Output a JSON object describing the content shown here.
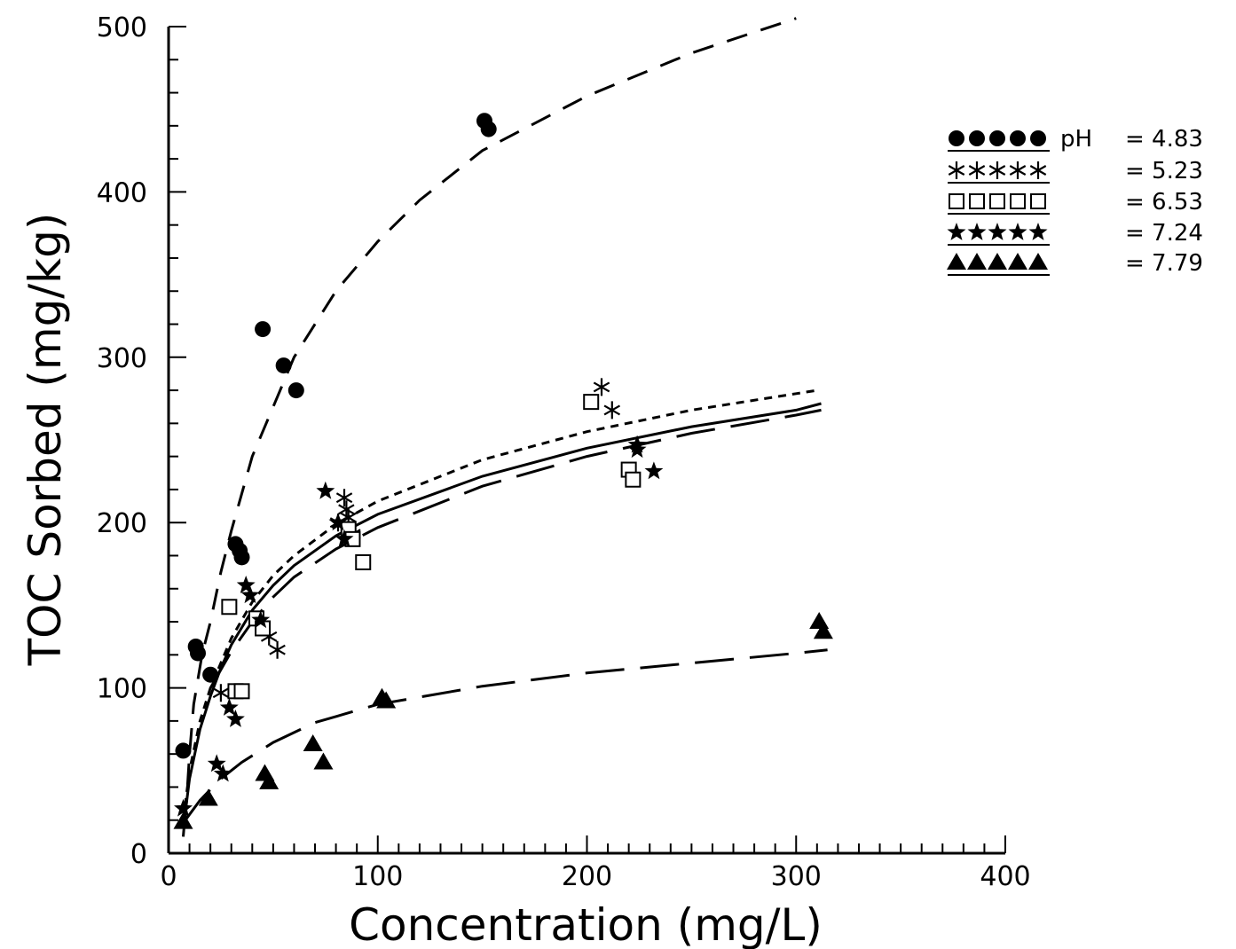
{
  "chart_data": {
    "type": "scatter",
    "xlabel": "Concentration (mg/L)",
    "ylabel": "TOC Sorbed (mg/kg)",
    "xlim": [
      0,
      400
    ],
    "ylim": [
      0,
      500
    ],
    "x_ticks": [
      "0",
      "100",
      "200",
      "300",
      "400"
    ],
    "y_ticks": [
      "0",
      "100",
      "200",
      "300",
      "400",
      "500"
    ],
    "grid": false,
    "legend_position": "top-right",
    "legend_prefix": "pH",
    "series": [
      {
        "name": "4.83",
        "label": "= 4.83",
        "marker": "filled-circle",
        "line": "dashed",
        "points": [
          [
            7,
            62
          ],
          [
            13,
            125
          ],
          [
            14,
            121
          ],
          [
            20,
            108
          ],
          [
            32,
            187
          ],
          [
            34,
            183
          ],
          [
            35,
            179
          ],
          [
            45,
            317
          ],
          [
            55,
            295
          ],
          [
            61,
            280
          ],
          [
            151,
            443
          ],
          [
            153,
            438
          ]
        ],
        "fit": [
          [
            8,
            20
          ],
          [
            10,
            60
          ],
          [
            12,
            90
          ],
          [
            16,
            120
          ],
          [
            20,
            140
          ],
          [
            25,
            170
          ],
          [
            30,
            195
          ],
          [
            40,
            240
          ],
          [
            50,
            270
          ],
          [
            60,
            300
          ],
          [
            80,
            340
          ],
          [
            100,
            370
          ],
          [
            120,
            395
          ],
          [
            150,
            425
          ],
          [
            200,
            458
          ],
          [
            250,
            484
          ],
          [
            300,
            505
          ]
        ]
      },
      {
        "name": "5.23",
        "label": "= 5.23",
        "marker": "asterisk",
        "line": "short-dashed",
        "points": [
          [
            25,
            97
          ],
          [
            48,
            131
          ],
          [
            52,
            123
          ],
          [
            81,
            200
          ],
          [
            84,
            215
          ],
          [
            85,
            208
          ],
          [
            86,
            203
          ],
          [
            88,
            193
          ],
          [
            207,
            282
          ],
          [
            212,
            268
          ]
        ],
        "fit": [
          [
            7,
            20
          ],
          [
            10,
            50
          ],
          [
            15,
            80
          ],
          [
            20,
            100
          ],
          [
            25,
            115
          ],
          [
            30,
            130
          ],
          [
            40,
            152
          ],
          [
            50,
            168
          ],
          [
            60,
            180
          ],
          [
            80,
            199
          ],
          [
            100,
            213
          ],
          [
            150,
            238
          ],
          [
            200,
            255
          ],
          [
            250,
            268
          ],
          [
            300,
            278
          ],
          [
            310,
            280
          ]
        ]
      },
      {
        "name": "6.53",
        "label": "= 6.53",
        "marker": "open-square",
        "line": "long-dashed",
        "points": [
          [
            29,
            149
          ],
          [
            32,
            98
          ],
          [
            35,
            98
          ],
          [
            42,
            142
          ],
          [
            45,
            136
          ],
          [
            86,
            196
          ],
          [
            88,
            190
          ],
          [
            93,
            176
          ],
          [
            202,
            273
          ],
          [
            220,
            232
          ],
          [
            222,
            226
          ]
        ],
        "fit": [
          [
            20,
            100
          ],
          [
            30,
            122
          ],
          [
            40,
            140
          ],
          [
            50,
            155
          ],
          [
            60,
            167
          ],
          [
            80,
            184
          ],
          [
            100,
            197
          ],
          [
            150,
            222
          ],
          [
            200,
            240
          ],
          [
            250,
            254
          ],
          [
            300,
            265
          ],
          [
            312,
            268
          ]
        ]
      },
      {
        "name": "7.24",
        "label": "= 7.24",
        "marker": "filled-star",
        "line": "solid",
        "points": [
          [
            7,
            27
          ],
          [
            23,
            54
          ],
          [
            26,
            48
          ],
          [
            29,
            88
          ],
          [
            32,
            81
          ],
          [
            37,
            162
          ],
          [
            39,
            156
          ],
          [
            44,
            141
          ],
          [
            75,
            219
          ],
          [
            81,
            200
          ],
          [
            84,
            190
          ],
          [
            224,
            247
          ],
          [
            224,
            244
          ],
          [
            232,
            231
          ]
        ],
        "fit": [
          [
            7,
            10
          ],
          [
            8,
            25
          ],
          [
            10,
            45
          ],
          [
            15,
            75
          ],
          [
            20,
            95
          ],
          [
            25,
            112
          ],
          [
            30,
            126
          ],
          [
            40,
            147
          ],
          [
            50,
            162
          ],
          [
            60,
            174
          ],
          [
            80,
            192
          ],
          [
            100,
            205
          ],
          [
            150,
            228
          ],
          [
            200,
            245
          ],
          [
            250,
            258
          ],
          [
            300,
            268
          ],
          [
            312,
            272
          ]
        ]
      },
      {
        "name": "7.79",
        "label": "= 7.79",
        "marker": "filled-triangle",
        "line": "long-dashed",
        "points": [
          [
            7,
            19
          ],
          [
            19,
            33
          ],
          [
            46,
            48
          ],
          [
            48,
            43
          ],
          [
            69,
            66
          ],
          [
            74,
            55
          ],
          [
            102,
            94
          ],
          [
            104,
            92
          ],
          [
            311,
            140
          ],
          [
            313,
            134
          ]
        ],
        "fit": [
          [
            8,
            20
          ],
          [
            15,
            32
          ],
          [
            25,
            45
          ],
          [
            35,
            55
          ],
          [
            50,
            67
          ],
          [
            70,
            79
          ],
          [
            100,
            90
          ],
          [
            150,
            101
          ],
          [
            200,
            109
          ],
          [
            250,
            115
          ],
          [
            300,
            121
          ],
          [
            315,
            123
          ]
        ]
      }
    ]
  }
}
